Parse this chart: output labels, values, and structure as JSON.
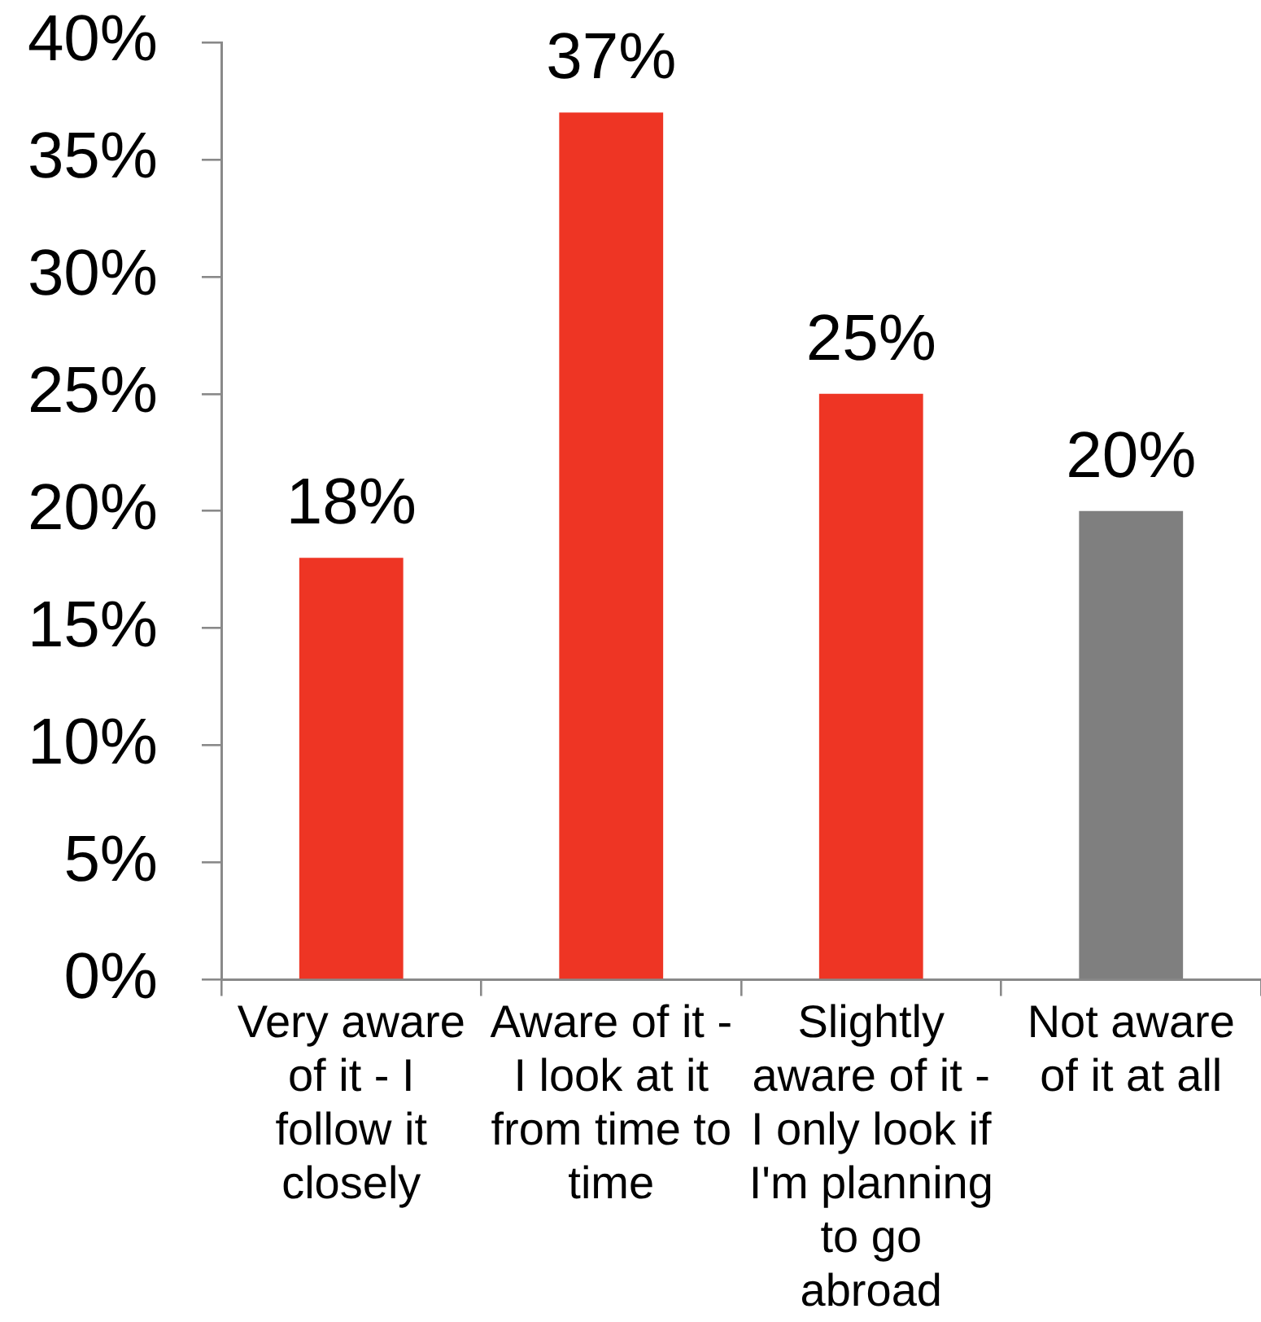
{
  "chart_data": {
    "type": "bar",
    "categories": [
      "Very aware of it - I follow it closely",
      "Aware of it - I look at it from time to time",
      "Slightly aware of it - I only look if I'm planning to go abroad",
      "Not aware of it at all"
    ],
    "values": [
      18,
      37,
      25,
      20
    ],
    "colors": [
      "#ee3524",
      "#ee3524",
      "#ee3524",
      "#7f7f7f"
    ],
    "value_labels": [
      "18%",
      "37%",
      "25%",
      "20%"
    ],
    "ylim": [
      0,
      40
    ],
    "yticks": [
      {
        "value": 0,
        "label": "0%"
      },
      {
        "value": 5,
        "label": "5%"
      },
      {
        "value": 10,
        "label": "10%"
      },
      {
        "value": 15,
        "label": "15%"
      },
      {
        "value": 20,
        "label": "20%"
      },
      {
        "value": 25,
        "label": "25%"
      },
      {
        "value": 30,
        "label": "30%"
      },
      {
        "value": 35,
        "label": "35%"
      },
      {
        "value": 40,
        "label": "40%"
      }
    ],
    "grid": false
  }
}
